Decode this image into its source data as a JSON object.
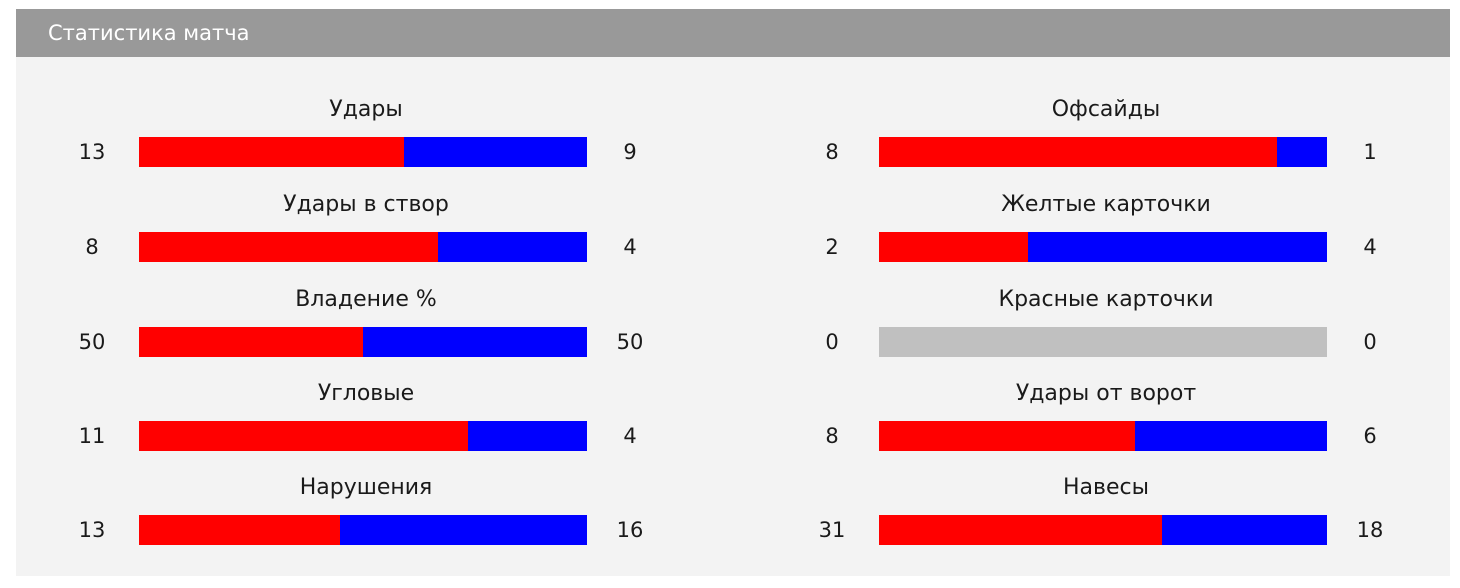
{
  "header": {
    "title": "Статистика матча"
  },
  "colors": {
    "home": "#ff0000",
    "away": "#0000ff",
    "empty": "#c0c0c0",
    "header_bg": "#999999"
  },
  "stats": [
    {
      "label": "Удары",
      "home": "13",
      "away": "9"
    },
    {
      "label": "Удары в створ",
      "home": "8",
      "away": "4"
    },
    {
      "label": "Владение %",
      "home": "50",
      "away": "50"
    },
    {
      "label": "Угловые",
      "home": "11",
      "away": "4"
    },
    {
      "label": "Нарушения",
      "home": "13",
      "away": "16"
    },
    {
      "label": "Офсайды",
      "home": "8",
      "away": "1"
    },
    {
      "label": "Желтые карточки",
      "home": "2",
      "away": "4"
    },
    {
      "label": "Красные карточки",
      "home": "0",
      "away": "0"
    },
    {
      "label": "Удары от ворот",
      "home": "8",
      "away": "6"
    },
    {
      "label": "Навесы",
      "home": "31",
      "away": "18"
    }
  ]
}
